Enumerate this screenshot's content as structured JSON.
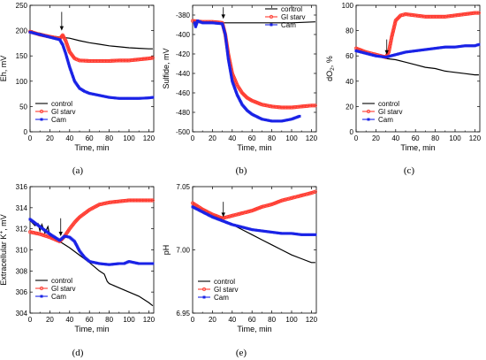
{
  "figure": {
    "panels": [
      "(a)",
      "(b)",
      "(c)",
      "(d)",
      "(e)"
    ]
  },
  "chart_data": [
    {
      "id": "a",
      "type": "line",
      "panel_label": "(a)",
      "xlabel": "Time, min",
      "ylabel": "Eh, mV",
      "xlim": [
        0,
        125
      ],
      "ylim": [
        0,
        250
      ],
      "xticks": [
        0,
        20,
        40,
        60,
        80,
        100,
        120
      ],
      "yticks": [
        0,
        50,
        100,
        150,
        200,
        250
      ],
      "grid": false,
      "legend_position": "bottom-left",
      "arrow_at": {
        "x": 32,
        "y_top": 237,
        "y_tip": 200
      },
      "series": [
        {
          "name": "control",
          "color": "#000000",
          "marker": "none",
          "x": [
            0,
            10,
            20,
            30,
            40,
            50,
            60,
            70,
            80,
            90,
            100,
            110,
            120,
            124
          ],
          "y": [
            198,
            195,
            190,
            187,
            185,
            180,
            176,
            173,
            170,
            168,
            166,
            165,
            164,
            164
          ]
        },
        {
          "name": "Gl starv",
          "color": "#ff3b30",
          "marker": "circle",
          "x": [
            0,
            10,
            20,
            30,
            33,
            36,
            40,
            45,
            50,
            60,
            70,
            80,
            90,
            100,
            110,
            120,
            124
          ],
          "y": [
            198,
            192,
            188,
            184,
            191,
            180,
            158,
            145,
            141,
            140,
            140,
            140,
            141,
            141,
            143,
            145,
            146
          ]
        },
        {
          "name": "Cam",
          "color": "#1a23e6",
          "marker": "square",
          "x": [
            0,
            10,
            20,
            30,
            33,
            36,
            40,
            45,
            50,
            55,
            60,
            70,
            80,
            90,
            100,
            110,
            120,
            124
          ],
          "y": [
            197,
            192,
            187,
            182,
            172,
            155,
            128,
            100,
            86,
            80,
            76,
            72,
            68,
            66,
            66,
            66,
            67,
            68
          ]
        }
      ]
    },
    {
      "id": "b",
      "type": "line",
      "panel_label": "(b)",
      "xlabel": "Time, min",
      "ylabel": "Sulfide, mV",
      "xlim": [
        0,
        125
      ],
      "ylim": [
        -500,
        -370
      ],
      "xticks": [
        0,
        20,
        40,
        60,
        80,
        100,
        120
      ],
      "yticks": [
        -500,
        -480,
        -460,
        -440,
        -420,
        -400,
        -380
      ],
      "grid": false,
      "legend_position": "top-right",
      "arrow_at": {
        "x": 31,
        "y_top": -372,
        "y_tip": -384
      },
      "series": [
        {
          "name": "control",
          "color": "#000000",
          "marker": "none",
          "x": [
            0,
            10,
            20,
            30,
            40,
            60,
            80,
            100,
            124
          ],
          "y": [
            -386,
            -387,
            -387,
            -388,
            -388,
            -388,
            -388,
            -388,
            -387
          ]
        },
        {
          "name": "Gl starv",
          "color": "#ff3b30",
          "marker": "circle",
          "x": [
            0,
            10,
            20,
            30,
            33,
            36,
            40,
            45,
            50,
            55,
            60,
            70,
            80,
            90,
            100,
            110,
            120,
            124
          ],
          "y": [
            -386,
            -387,
            -387,
            -388,
            -400,
            -420,
            -440,
            -452,
            -460,
            -465,
            -468,
            -472,
            -474,
            -475,
            -475,
            -474,
            -473,
            -473
          ]
        },
        {
          "name": "Cam",
          "color": "#1a23e6",
          "marker": "square",
          "x": [
            2,
            3,
            5,
            10,
            20,
            30,
            33,
            36,
            40,
            45,
            50,
            55,
            60,
            70,
            80,
            90,
            100,
            108
          ],
          "y": [
            -388,
            -392,
            -386,
            -388,
            -388,
            -389,
            -400,
            -425,
            -448,
            -462,
            -472,
            -478,
            -482,
            -487,
            -489,
            -489,
            -487,
            -484
          ]
        }
      ]
    },
    {
      "id": "c",
      "type": "line",
      "panel_label": "(c)",
      "xlabel": "Time, min",
      "ylabel": "dO2, %",
      "ylabel_main": "dO",
      "ylabel_sub": "2",
      "ylabel_tail": ", %",
      "xlim": [
        0,
        125
      ],
      "ylim": [
        0,
        100
      ],
      "xticks": [
        0,
        20,
        40,
        60,
        80,
        100,
        120
      ],
      "yticks": [
        0,
        20,
        40,
        60,
        80,
        100
      ],
      "grid": false,
      "legend_position": "bottom-left",
      "arrow_at": {
        "x": 31,
        "y_top": 73,
        "y_tip": 61
      },
      "series": [
        {
          "name": "control",
          "color": "#000000",
          "marker": "none",
          "x": [
            0,
            10,
            20,
            30,
            40,
            50,
            60,
            70,
            80,
            90,
            100,
            110,
            120,
            124
          ],
          "y": [
            64,
            62,
            60,
            58,
            57,
            55,
            53,
            51,
            50,
            48,
            47,
            46,
            45,
            45
          ]
        },
        {
          "name": "Gl starv",
          "color": "#ff3b30",
          "marker": "circle",
          "x": [
            0,
            10,
            20,
            30,
            33,
            36,
            40,
            45,
            50,
            60,
            70,
            80,
            90,
            100,
            110,
            120,
            124
          ],
          "y": [
            66,
            63,
            61,
            59,
            63,
            75,
            88,
            92,
            93,
            92,
            91,
            91,
            91,
            92,
            93,
            94,
            94
          ]
        },
        {
          "name": "Cam",
          "color": "#1a23e6",
          "marker": "square",
          "x": [
            0,
            10,
            20,
            30,
            35,
            40,
            50,
            60,
            70,
            80,
            90,
            100,
            110,
            120,
            124
          ],
          "y": [
            64,
            62,
            60,
            59,
            60,
            61,
            63,
            64,
            65,
            66,
            67,
            67,
            68,
            68,
            69
          ]
        }
      ]
    },
    {
      "id": "d",
      "type": "line",
      "panel_label": "(d)",
      "xlabel": "Time, min",
      "ylabel": "Extracellular K+, mV",
      "ylabel_main": "Extracellular K",
      "ylabel_sup": "+",
      "ylabel_tail": ", mV",
      "xlim": [
        0,
        125
      ],
      "ylim": [
        304,
        316
      ],
      "xticks": [
        0,
        20,
        40,
        60,
        80,
        100,
        120
      ],
      "yticks": [
        304,
        306,
        308,
        310,
        312,
        314,
        316
      ],
      "grid": false,
      "legend_position": "bottom-left",
      "arrow_at": {
        "x": 31,
        "y_top": 313.0,
        "y_tip": 311.3
      },
      "series": [
        {
          "name": "control",
          "color": "#000000",
          "marker": "none",
          "x": [
            0,
            5,
            8,
            10,
            12,
            15,
            18,
            20,
            25,
            30,
            40,
            50,
            60,
            70,
            75,
            78,
            80,
            90,
            100,
            110,
            120,
            124
          ],
          "y": [
            312.8,
            312.3,
            312.5,
            311.8,
            312.4,
            311.6,
            312.2,
            311.3,
            311.1,
            310.8,
            310.2,
            309.5,
            308.8,
            308.0,
            307.7,
            307.0,
            306.8,
            306.4,
            306.0,
            305.6,
            305.0,
            304.7
          ]
        },
        {
          "name": "Gl starv",
          "color": "#ff3b30",
          "marker": "circle",
          "x": [
            0,
            10,
            20,
            30,
            35,
            40,
            45,
            50,
            60,
            70,
            80,
            90,
            100,
            110,
            120,
            124
          ],
          "y": [
            311.7,
            311.5,
            311.2,
            310.8,
            311.3,
            312.0,
            312.6,
            313.1,
            313.8,
            314.3,
            314.5,
            314.6,
            314.7,
            314.7,
            314.7,
            314.7
          ]
        },
        {
          "name": "Cam",
          "color": "#1a23e6",
          "marker": "square",
          "x": [
            0,
            10,
            20,
            30,
            35,
            40,
            45,
            50,
            55,
            60,
            70,
            80,
            90,
            95,
            100,
            105,
            110,
            120,
            124
          ],
          "y": [
            312.9,
            312.2,
            311.5,
            310.9,
            311.3,
            311.2,
            310.8,
            309.9,
            309.3,
            308.9,
            308.7,
            308.6,
            308.7,
            308.7,
            308.9,
            308.8,
            308.7,
            308.7,
            308.7
          ]
        }
      ]
    },
    {
      "id": "e",
      "type": "line",
      "panel_label": "(e)",
      "xlabel": "Time, min",
      "ylabel": "pH",
      "xlim": [
        0,
        125
      ],
      "ylim": [
        6.95,
        7.05
      ],
      "xticks": [
        0,
        20,
        40,
        60,
        80,
        100,
        120
      ],
      "yticks": [
        6.95,
        7.0,
        7.05
      ],
      "ytick_labels": [
        "6.95",
        "7.00",
        "7.05"
      ],
      "grid": false,
      "legend_position": "bottom-left",
      "arrow_at": {
        "x": 31,
        "y_top": 7.038,
        "y_tip": 7.026
      },
      "series": [
        {
          "name": "control",
          "color": "#000000",
          "marker": "none",
          "x": [
            0,
            10,
            20,
            30,
            40,
            50,
            60,
            70,
            80,
            90,
            100,
            110,
            120,
            124
          ],
          "y": [
            7.037,
            7.032,
            7.028,
            7.024,
            7.02,
            7.016,
            7.012,
            7.008,
            7.004,
            7.0,
            6.996,
            6.993,
            6.99,
            6.99
          ]
        },
        {
          "name": "Gl starv",
          "color": "#ff3b30",
          "marker": "circle",
          "x": [
            0,
            10,
            20,
            30,
            40,
            50,
            60,
            70,
            80,
            90,
            100,
            110,
            120,
            124
          ],
          "y": [
            7.037,
            7.032,
            7.028,
            7.025,
            7.027,
            7.029,
            7.031,
            7.034,
            7.036,
            7.039,
            7.041,
            7.043,
            7.045,
            7.046
          ]
        },
        {
          "name": "Cam",
          "color": "#1a23e6",
          "marker": "square",
          "x": [
            0,
            10,
            20,
            30,
            40,
            50,
            60,
            70,
            80,
            90,
            100,
            110,
            120,
            124
          ],
          "y": [
            7.034,
            7.03,
            7.026,
            7.023,
            7.02,
            7.018,
            7.016,
            7.015,
            7.014,
            7.013,
            7.013,
            7.012,
            7.012,
            7.012
          ]
        }
      ]
    }
  ]
}
